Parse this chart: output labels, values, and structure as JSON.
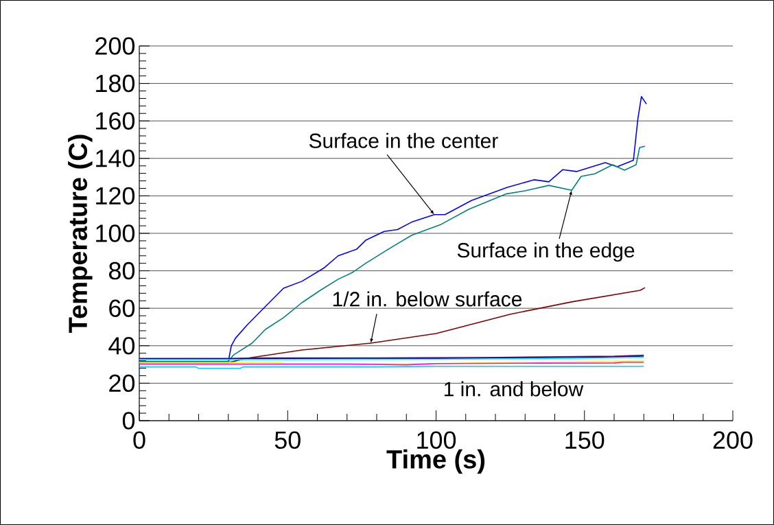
{
  "chart_data": {
    "type": "line",
    "xlabel": "Time (s)",
    "ylabel": "Temperature (C)",
    "xlim": [
      0,
      200
    ],
    "ylim": [
      0,
      200
    ],
    "xticks": [
      0,
      50,
      100,
      150,
      200
    ],
    "yticks": [
      0,
      20,
      40,
      60,
      80,
      100,
      120,
      140,
      160,
      180,
      200
    ],
    "grid": "y",
    "marker": "none",
    "line_style": "solid",
    "series": [
      {
        "color": "#0000ff",
        "x": [
          0,
          30,
          31,
          32.4,
          36.3,
          42.5,
          48.6,
          54.8,
          62.4,
          67,
          73.3,
          76.3,
          82.5,
          87,
          91.8,
          99.4,
          103,
          112,
          124,
          133,
          138,
          142.7,
          147.3,
          157,
          161,
          166.5,
          168,
          169.2,
          170.9
        ],
        "values": [
          31.5,
          31.5,
          40,
          44,
          51,
          61,
          70.7,
          74.4,
          81.7,
          88,
          91.6,
          96.3,
          101,
          102,
          106,
          110,
          110,
          117.6,
          124.5,
          128.6,
          127.5,
          134,
          133,
          137.7,
          135.5,
          139,
          161,
          173,
          169
        ]
      },
      {
        "color": "#008080",
        "x": [
          0,
          30,
          31.7,
          38,
          42.5,
          48.6,
          54.8,
          61,
          67,
          71.7,
          76.3,
          84,
          91.8,
          101.7,
          111,
          123.5,
          130,
          138,
          145.7,
          148.9,
          153.5,
          159.5,
          163.5,
          167.4,
          168.6,
          170.4
        ],
        "values": [
          31.5,
          31.5,
          35,
          41.4,
          48.7,
          55,
          63,
          69.6,
          75.5,
          79,
          84,
          91.6,
          99,
          104.8,
          112.8,
          121,
          122.7,
          125.6,
          123,
          130.4,
          131.8,
          136.6,
          133.7,
          136.6,
          145.8,
          146.5
        ]
      },
      {
        "color": "#800000",
        "x": [
          0,
          30,
          36.3,
          54.8,
          78,
          100,
          124.9,
          145.7,
          168.8,
          170.4
        ],
        "values": [
          31,
          31,
          33.3,
          37.7,
          41.4,
          46.5,
          56.8,
          63.4,
          69.6,
          71
        ]
      },
      {
        "color": "#800080",
        "x": [
          0,
          30,
          40,
          80,
          120,
          160,
          170
        ],
        "values": [
          33.2,
          33.2,
          33.5,
          33.5,
          33.8,
          34.4,
          35
        ]
      },
      {
        "color": "#000080",
        "x": [
          0,
          30,
          110,
          150,
          170
        ],
        "values": [
          33,
          33,
          33.2,
          33.8,
          34.4
        ]
      },
      {
        "color": "#00ffff",
        "x": [
          0,
          30,
          100,
          140,
          165,
          170
        ],
        "values": [
          32.6,
          32.6,
          32.8,
          33.2,
          33.6,
          33.9
        ]
      },
      {
        "color": "#ffff00",
        "x": [
          0,
          30,
          45,
          50,
          100,
          120,
          150,
          170
        ],
        "values": [
          31,
          31,
          31.2,
          30.4,
          30.4,
          31,
          31.5,
          32
        ]
      },
      {
        "color": "#ff00ff",
        "x": [
          0,
          30,
          70,
          90,
          100,
          135,
          160,
          163,
          170
        ],
        "values": [
          30.2,
          30.2,
          30.2,
          29.8,
          30.5,
          30.7,
          30.8,
          31.2,
          31.2
        ]
      },
      {
        "color": "#00ccff",
        "x": [
          0,
          19,
          20,
          34,
          35,
          80,
          100,
          170
        ],
        "values": [
          28.7,
          28.7,
          27.9,
          27.9,
          28.7,
          28.7,
          29,
          29
        ]
      }
    ],
    "annotations": [
      {
        "text": "Surface in the center",
        "x": 99.4,
        "y": 110
      },
      {
        "text": "Surface  in the edge",
        "x": 145.7,
        "y": 123
      },
      {
        "text": "1/2 in. below surface",
        "x": 78,
        "y": 41.4
      },
      "1 in. and below"
    ]
  }
}
